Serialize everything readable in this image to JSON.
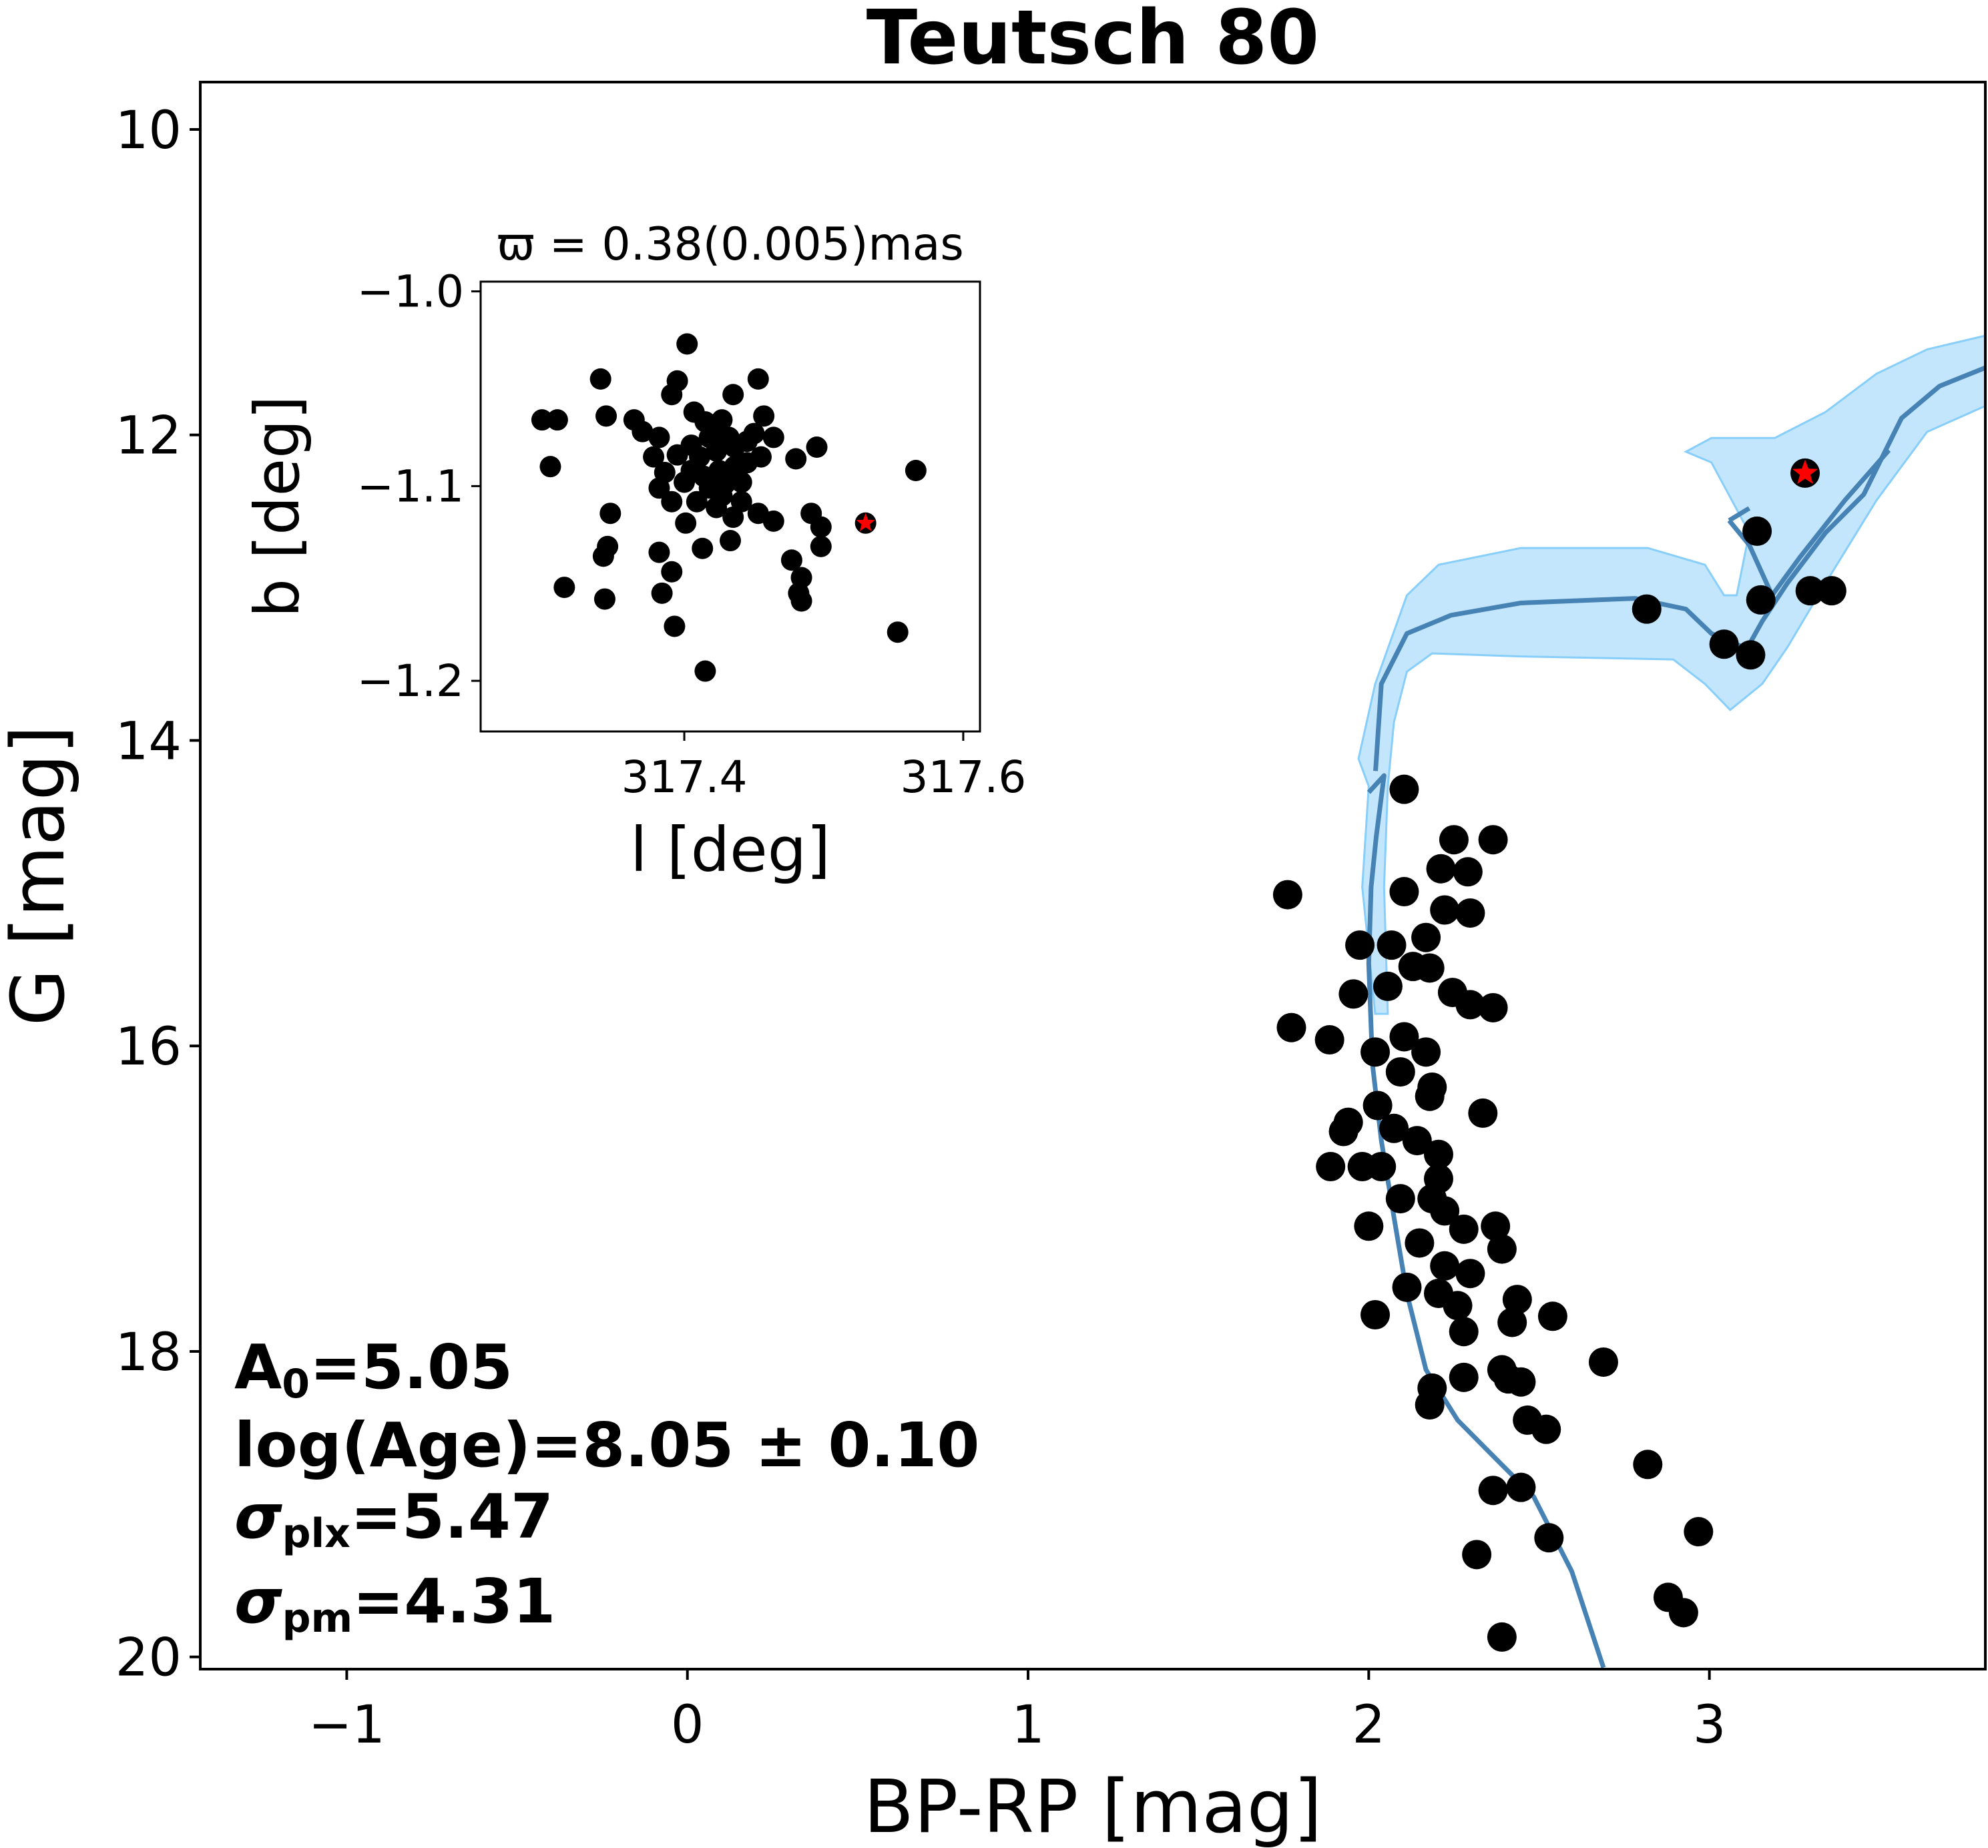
{
  "chart_data": [
    {
      "type": "scatter",
      "title": "Teutsch 80",
      "xlabel": "BP-RP [mag]",
      "ylabel": "G [mag]",
      "xlim": [
        -1.43,
        3.81
      ],
      "ylim": [
        20.08,
        9.69
      ],
      "y_inverted": true,
      "xticks": [
        -1,
        0,
        1,
        2,
        3
      ],
      "xtick_labels": [
        "−1",
        "0",
        "1",
        "2",
        "3"
      ],
      "yticks": [
        10,
        12,
        14,
        16,
        18,
        20
      ],
      "ytick_labels": [
        "10",
        "12",
        "14",
        "16",
        "18",
        "20"
      ],
      "grid": false,
      "colors": {
        "points": "#000000",
        "highlight": "#ff0000",
        "isochrone": "#4682b4",
        "band": "#87cefa"
      },
      "points": [
        [
          2.816,
          13.14
        ],
        [
          3.043,
          13.37
        ],
        [
          3.121,
          13.44
        ],
        [
          3.14,
          12.63
        ],
        [
          3.151,
          13.08
        ],
        [
          3.296,
          13.02
        ],
        [
          3.359,
          13.02
        ],
        [
          2.104,
          14.32
        ],
        [
          2.25,
          14.65
        ],
        [
          2.365,
          14.65
        ],
        [
          1.762,
          15.01
        ],
        [
          2.104,
          14.99
        ],
        [
          2.212,
          14.84
        ],
        [
          2.291,
          14.86
        ],
        [
          2.223,
          15.11
        ],
        [
          2.298,
          15.13
        ],
        [
          1.974,
          15.34
        ],
        [
          2.067,
          15.34
        ],
        [
          2.168,
          15.29
        ],
        [
          2.13,
          15.48
        ],
        [
          2.179,
          15.49
        ],
        [
          1.955,
          15.66
        ],
        [
          2.056,
          15.61
        ],
        [
          2.246,
          15.65
        ],
        [
          2.365,
          15.75
        ],
        [
          2.298,
          15.73
        ],
        [
          1.773,
          15.88
        ],
        [
          1.885,
          15.96
        ],
        [
          2.019,
          16.04
        ],
        [
          2.104,
          15.94
        ],
        [
          2.168,
          16.04
        ],
        [
          2.093,
          16.17
        ],
        [
          2.186,
          16.27
        ],
        [
          2.026,
          16.39
        ],
        [
          2.179,
          16.33
        ],
        [
          2.335,
          16.44
        ],
        [
          1.94,
          16.5
        ],
        [
          1.926,
          16.56
        ],
        [
          2.074,
          16.54
        ],
        [
          2.142,
          16.62
        ],
        [
          2.205,
          16.71
        ],
        [
          1.888,
          16.79
        ],
        [
          1.981,
          16.79
        ],
        [
          2.037,
          16.79
        ],
        [
          2.205,
          16.87
        ],
        [
          2.186,
          17.0
        ],
        [
          2.093,
          17.0
        ],
        [
          2.0,
          17.18
        ],
        [
          2.223,
          17.08
        ],
        [
          2.279,
          17.2
        ],
        [
          2.149,
          17.29
        ],
        [
          2.372,
          17.18
        ],
        [
          2.391,
          17.33
        ],
        [
          2.223,
          17.44
        ],
        [
          2.298,
          17.49
        ],
        [
          2.205,
          17.62
        ],
        [
          2.112,
          17.58
        ],
        [
          2.019,
          17.76
        ],
        [
          2.261,
          17.7
        ],
        [
          2.279,
          17.87
        ],
        [
          2.436,
          17.66
        ],
        [
          2.421,
          17.81
        ],
        [
          2.54,
          17.77
        ],
        [
          2.689,
          18.07
        ],
        [
          2.186,
          18.24
        ],
        [
          2.179,
          18.35
        ],
        [
          2.279,
          18.17
        ],
        [
          2.391,
          18.12
        ],
        [
          2.41,
          18.18
        ],
        [
          2.447,
          18.2
        ],
        [
          2.466,
          18.45
        ],
        [
          2.521,
          18.51
        ],
        [
          2.819,
          18.74
        ],
        [
          2.365,
          18.91
        ],
        [
          2.447,
          18.89
        ],
        [
          2.529,
          19.22
        ],
        [
          2.317,
          19.33
        ],
        [
          2.968,
          19.18
        ],
        [
          2.879,
          19.61
        ],
        [
          2.924,
          19.71
        ],
        [
          2.391,
          19.87
        ]
      ],
      "highlight_star": [
        3.281,
        12.25
      ],
      "isochrone_segments": [
        [
          [
            2.689,
            20.07
          ],
          [
            2.596,
            19.44
          ],
          [
            2.484,
            18.95
          ],
          [
            2.372,
            18.7
          ],
          [
            2.261,
            18.45
          ],
          [
            2.168,
            18.12
          ],
          [
            2.112,
            17.62
          ],
          [
            2.074,
            17.12
          ],
          [
            2.037,
            16.62
          ],
          [
            2.011,
            16.12
          ],
          [
            2.0,
            15.46
          ],
          [
            2.007,
            14.96
          ],
          [
            2.022,
            14.63
          ],
          [
            2.045,
            14.23
          ],
          [
            2.0,
            14.34
          ]
        ],
        [
          [
            2.02,
            14.2
          ],
          [
            2.037,
            13.63
          ],
          [
            2.112,
            13.3
          ],
          [
            2.242,
            13.18
          ],
          [
            2.447,
            13.1
          ],
          [
            2.782,
            13.07
          ],
          [
            2.931,
            13.14
          ],
          [
            3.006,
            13.3
          ],
          [
            3.11,
            13.4
          ],
          [
            3.155,
            13.22
          ],
          [
            3.229,
            12.97
          ],
          [
            3.341,
            12.64
          ],
          [
            3.453,
            12.39
          ],
          [
            3.564,
            11.89
          ],
          [
            3.676,
            11.68
          ],
          [
            3.81,
            11.56
          ]
        ],
        [
          [
            3.058,
            12.56
          ],
          [
            3.117,
            12.72
          ],
          [
            3.184,
            13.05
          ],
          [
            3.266,
            12.8
          ],
          [
            3.397,
            12.43
          ],
          [
            3.527,
            12.1
          ]
        ],
        [
          [
            3.058,
            12.56
          ],
          [
            3.117,
            12.48
          ]
        ]
      ],
      "uncertainty_band": [
        [
          1.97,
          14.12
        ],
        [
          2.019,
          13.63
        ],
        [
          2.112,
          13.05
        ],
        [
          2.205,
          12.85
        ],
        [
          2.447,
          12.74
        ],
        [
          2.819,
          12.74
        ],
        [
          2.987,
          12.85
        ],
        [
          3.043,
          13.05
        ],
        [
          3.08,
          13.05
        ],
        [
          3.117,
          12.64
        ],
        [
          3.006,
          12.18
        ],
        [
          2.931,
          12.11
        ],
        [
          3.006,
          12.02
        ],
        [
          3.192,
          12.02
        ],
        [
          3.341,
          11.85
        ],
        [
          3.49,
          11.6
        ],
        [
          3.639,
          11.44
        ],
        [
          3.81,
          11.35
        ],
        [
          3.81,
          11.81
        ],
        [
          3.639,
          11.98
        ],
        [
          3.49,
          12.43
        ],
        [
          3.341,
          12.97
        ],
        [
          3.229,
          13.39
        ],
        [
          3.155,
          13.63
        ],
        [
          3.061,
          13.8
        ],
        [
          2.987,
          13.63
        ],
        [
          2.894,
          13.47
        ],
        [
          2.447,
          13.45
        ],
        [
          2.186,
          13.43
        ],
        [
          2.112,
          13.55
        ],
        [
          2.074,
          13.88
        ],
        [
          2.056,
          14.3
        ],
        [
          2.045,
          14.96
        ],
        [
          2.056,
          15.79
        ],
        [
          2.019,
          15.79
        ],
        [
          1.981,
          14.96
        ],
        [
          2.0,
          14.3
        ]
      ],
      "annotations": {
        "a0": {
          "main": "A",
          "sub": "0",
          "rest": "=5.05"
        },
        "age": {
          "text": "log(Age)=8.05 ± 0.10"
        },
        "plx": {
          "main": "σ",
          "sub": "plx",
          "rest": "=5.47"
        },
        "pm": {
          "main": "σ",
          "sub": "pm",
          "rest": "=4.31"
        }
      }
    },
    {
      "type": "scatter",
      "title": "ϖ = 0.38(0.005)mas",
      "xlabel": "l [deg]",
      "ylabel": "b [deg]",
      "xlim": [
        317.254,
        317.612
      ],
      "ylim": [
        -1.226,
        -0.995
      ],
      "xticks": [
        317.4,
        317.6
      ],
      "xtick_labels": [
        "317.4",
        "317.6"
      ],
      "yticks": [
        -1.0,
        -1.1,
        -1.2
      ],
      "ytick_labels": [
        "−1.0",
        "−1.1",
        "−1.2"
      ],
      "grid": false,
      "points": [
        [
          317.402,
          -1.027
        ],
        [
          317.34,
          -1.045
        ],
        [
          317.453,
          -1.045
        ],
        [
          317.298,
          -1.066
        ],
        [
          317.309,
          -1.066
        ],
        [
          317.344,
          -1.064
        ],
        [
          317.364,
          -1.066
        ],
        [
          317.37,
          -1.072
        ],
        [
          317.391,
          -1.053
        ],
        [
          317.395,
          -1.046
        ],
        [
          317.435,
          -1.053
        ],
        [
          317.457,
          -1.064
        ],
        [
          317.464,
          -1.075
        ],
        [
          317.382,
          -1.075
        ],
        [
          317.378,
          -1.085
        ],
        [
          317.304,
          -1.09
        ],
        [
          317.495,
          -1.08
        ],
        [
          317.48,
          -1.086
        ],
        [
          317.566,
          -1.092
        ],
        [
          317.382,
          -1.101
        ],
        [
          317.391,
          -1.108
        ],
        [
          317.347,
          -1.114
        ],
        [
          317.401,
          -1.119
        ],
        [
          317.435,
          -1.116
        ],
        [
          317.453,
          -1.114
        ],
        [
          317.491,
          -1.114
        ],
        [
          317.498,
          -1.121
        ],
        [
          317.464,
          -1.118
        ],
        [
          317.433,
          -1.128
        ],
        [
          317.413,
          -1.132
        ],
        [
          317.382,
          -1.134
        ],
        [
          317.345,
          -1.131
        ],
        [
          317.342,
          -1.136
        ],
        [
          317.498,
          -1.131
        ],
        [
          317.477,
          -1.138
        ],
        [
          317.391,
          -1.144
        ],
        [
          317.384,
          -1.155
        ],
        [
          317.484,
          -1.147
        ],
        [
          317.482,
          -1.155
        ],
        [
          317.484,
          -1.159
        ],
        [
          317.314,
          -1.152
        ],
        [
          317.343,
          -1.158
        ],
        [
          317.393,
          -1.172
        ],
        [
          317.553,
          -1.175
        ],
        [
          317.415,
          -1.195
        ],
        [
          317.407,
          -1.062
        ],
        [
          317.415,
          -1.067
        ],
        [
          317.423,
          -1.069
        ],
        [
          317.427,
          -1.066
        ],
        [
          317.432,
          -1.075
        ],
        [
          317.418,
          -1.075
        ],
        [
          317.405,
          -1.079
        ],
        [
          317.411,
          -1.085
        ],
        [
          317.423,
          -1.082
        ],
        [
          317.436,
          -1.08
        ],
        [
          317.445,
          -1.077
        ],
        [
          317.405,
          -1.092
        ],
        [
          317.414,
          -1.095
        ],
        [
          317.425,
          -1.092
        ],
        [
          317.436,
          -1.09
        ],
        [
          317.445,
          -1.088
        ],
        [
          317.455,
          -1.085
        ],
        [
          317.418,
          -1.101
        ],
        [
          317.427,
          -1.105
        ],
        [
          317.441,
          -1.098
        ],
        [
          317.409,
          -1.108
        ],
        [
          317.4,
          -1.098
        ],
        [
          317.423,
          -1.111
        ],
        [
          317.45,
          -1.073
        ],
        [
          317.395,
          -1.084
        ],
        [
          317.386,
          -1.093
        ],
        [
          317.441,
          -1.108
        ],
        [
          317.429,
          -1.099
        ]
      ],
      "highlight_star": [
        317.53,
        -1.119
      ]
    }
  ]
}
